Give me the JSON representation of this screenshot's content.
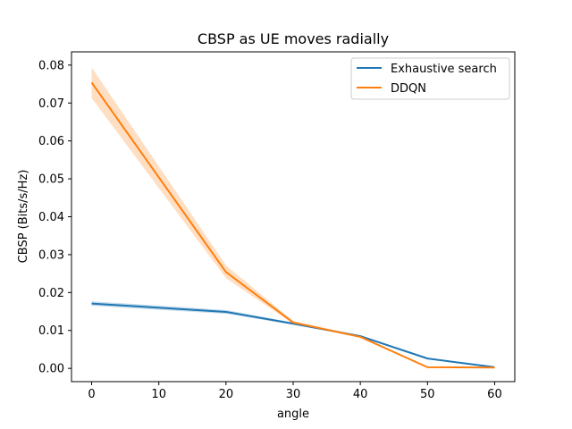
{
  "chart_data": {
    "type": "line",
    "title": "CBSP as UE moves radially",
    "xlabel": "angle",
    "ylabel": "CBSP (Bits/s/Hz)",
    "xlim": [
      -3,
      63
    ],
    "ylim": [
      -0.0035,
      0.0835
    ],
    "xticks": [
      0,
      10,
      20,
      30,
      40,
      50,
      60
    ],
    "yticks": [
      0.0,
      0.01,
      0.02,
      0.03,
      0.04,
      0.05,
      0.06,
      0.07,
      0.08
    ],
    "ytick_labels": [
      "0.00",
      "0.01",
      "0.02",
      "0.03",
      "0.04",
      "0.05",
      "0.06",
      "0.07",
      "0.08"
    ],
    "grid": false,
    "legend_position": "top-right",
    "x": [
      0,
      20,
      30,
      40,
      50,
      60
    ],
    "series": [
      {
        "name": "Exhaustive search",
        "color": "#1f77b4",
        "values": [
          0.0171,
          0.0149,
          0.0118,
          0.0085,
          0.0026,
          0.0003
        ],
        "lower": [
          0.0165,
          0.0144,
          0.0115,
          0.0083,
          0.0025,
          0.0002
        ],
        "upper": [
          0.0177,
          0.0154,
          0.0121,
          0.0087,
          0.0027,
          0.0004
        ]
      },
      {
        "name": "DDQN",
        "color": "#ff7f0e",
        "values": [
          0.0754,
          0.0254,
          0.0121,
          0.0083,
          0.0003,
          0.0002
        ],
        "lower": [
          0.0713,
          0.0238,
          0.0117,
          0.0081,
          0.0002,
          0.0001
        ],
        "upper": [
          0.0794,
          0.0272,
          0.0125,
          0.0086,
          0.0004,
          0.0003
        ]
      }
    ]
  }
}
